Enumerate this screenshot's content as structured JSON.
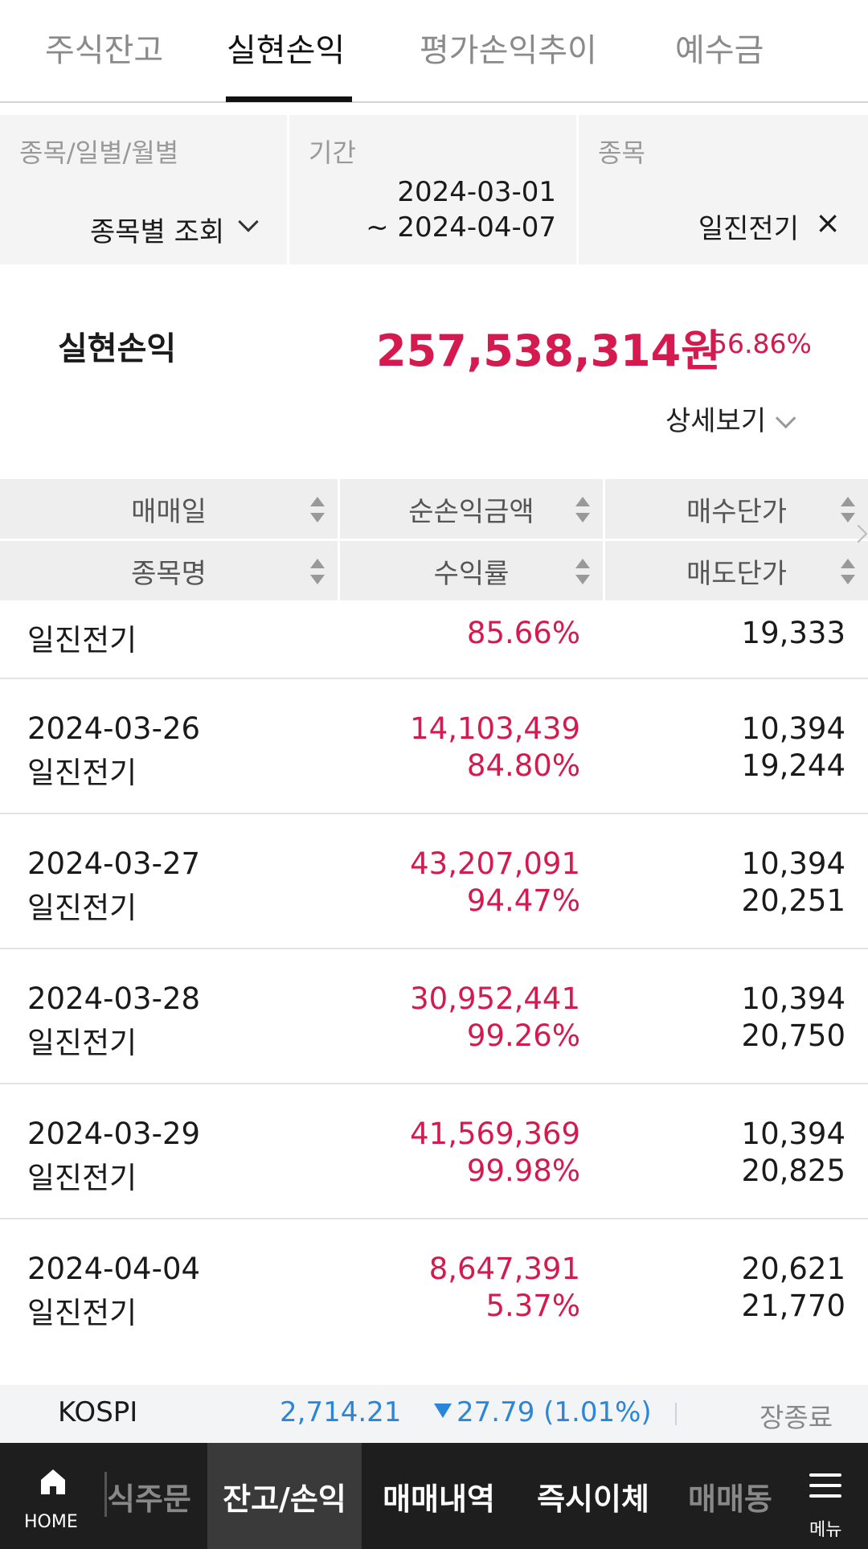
{
  "tabs": [
    {
      "label": "주식잔고"
    },
    {
      "label": "실현손익"
    },
    {
      "label": "평가손익추이"
    },
    {
      "label": "예수금"
    }
  ],
  "filters": {
    "type": {
      "label": "종목/일별/월별",
      "value": "종목별 조회"
    },
    "period": {
      "label": "기간",
      "from": "2024-03-01",
      "to": "~ 2024-04-07"
    },
    "stock": {
      "label": "종목",
      "value": "일진전기",
      "clear": "×"
    }
  },
  "summary": {
    "label": "실현손익",
    "amount": "257,538,314원",
    "rate": "56.86%",
    "detail_label": "상세보기"
  },
  "table": {
    "headers_top": [
      "매매일",
      "순손익금액",
      "매수단가"
    ],
    "headers_bottom": [
      "종목명",
      "수익률",
      "매도단가"
    ],
    "partial_row": {
      "name": "일진전기",
      "rate": "85.66%",
      "sell": "19,333"
    },
    "rows": [
      {
        "date": "2024-03-26",
        "name": "일진전기",
        "profit": "14,103,439",
        "rate": "84.80%",
        "buy": "10,394",
        "sell": "19,244"
      },
      {
        "date": "2024-03-27",
        "name": "일진전기",
        "profit": "43,207,091",
        "rate": "94.47%",
        "buy": "10,394",
        "sell": "20,251"
      },
      {
        "date": "2024-03-28",
        "name": "일진전기",
        "profit": "30,952,441",
        "rate": "99.26%",
        "buy": "10,394",
        "sell": "20,750"
      },
      {
        "date": "2024-03-29",
        "name": "일진전기",
        "profit": "41,569,369",
        "rate": "99.98%",
        "buy": "10,394",
        "sell": "20,825"
      },
      {
        "date": "2024-04-04",
        "name": "일진전기",
        "profit": "8,647,391",
        "rate": "5.37%",
        "buy": "20,621",
        "sell": "21,770"
      }
    ]
  },
  "market": {
    "index_name": "KOSPI",
    "value": "2,714.21",
    "change": "27.79 (1.01%)",
    "status": "장종료"
  },
  "nav": {
    "home": "HOME",
    "items": [
      "식주문",
      "잔고/손익",
      "매매내역",
      "즉시이체",
      "매매동"
    ],
    "menu": "메뉴"
  },
  "colors": {
    "profit": "#d41a4f",
    "index_down": "#2b86d8",
    "nav_bg": "#1e1e1e"
  }
}
